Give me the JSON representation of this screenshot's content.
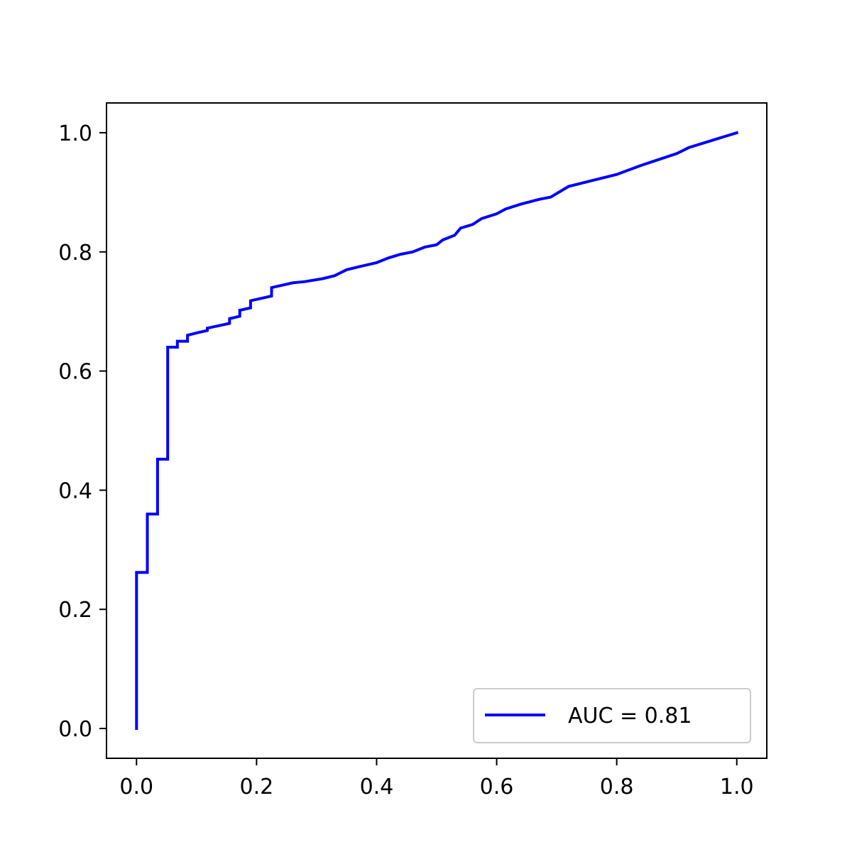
{
  "chart_data": {
    "type": "line",
    "title": "",
    "xlabel": "",
    "ylabel": "",
    "xlim": [
      -0.05,
      1.05
    ],
    "ylim": [
      -0.05,
      1.05
    ],
    "x_ticks": [
      0.0,
      0.2,
      0.4,
      0.6,
      0.8,
      1.0
    ],
    "y_ticks": [
      0.0,
      0.2,
      0.4,
      0.6,
      0.8,
      1.0
    ],
    "x_tick_labels": [
      "0.0",
      "0.2",
      "0.4",
      "0.6",
      "0.8",
      "1.0"
    ],
    "y_tick_labels": [
      "0.0",
      "0.2",
      "0.4",
      "0.6",
      "0.8",
      "1.0"
    ],
    "grid": false,
    "legend": {
      "position": "lower-right",
      "entries": [
        "AUC = 0.81"
      ]
    },
    "series": [
      {
        "name": "AUC = 0.81",
        "color": "#0000ff",
        "x": [
          0.0,
          0.0,
          0.018,
          0.018,
          0.035,
          0.035,
          0.052,
          0.052,
          0.068,
          0.068,
          0.085,
          0.085,
          0.1,
          0.118,
          0.118,
          0.155,
          0.155,
          0.172,
          0.172,
          0.19,
          0.19,
          0.225,
          0.225,
          0.26,
          0.28,
          0.31,
          0.33,
          0.35,
          0.37,
          0.4,
          0.42,
          0.44,
          0.46,
          0.48,
          0.5,
          0.51,
          0.53,
          0.54,
          0.56,
          0.575,
          0.6,
          0.615,
          0.64,
          0.67,
          0.69,
          0.72,
          0.76,
          0.8,
          0.84,
          0.87,
          0.9,
          0.92,
          1.0
        ],
        "y": [
          0.0,
          0.262,
          0.262,
          0.36,
          0.36,
          0.452,
          0.452,
          0.64,
          0.64,
          0.65,
          0.65,
          0.66,
          0.664,
          0.668,
          0.672,
          0.68,
          0.688,
          0.692,
          0.702,
          0.706,
          0.718,
          0.726,
          0.74,
          0.748,
          0.75,
          0.755,
          0.76,
          0.77,
          0.775,
          0.782,
          0.79,
          0.796,
          0.8,
          0.808,
          0.812,
          0.82,
          0.828,
          0.84,
          0.846,
          0.856,
          0.864,
          0.872,
          0.88,
          0.888,
          0.892,
          0.91,
          0.92,
          0.93,
          0.945,
          0.955,
          0.965,
          0.975,
          1.0
        ]
      }
    ]
  }
}
